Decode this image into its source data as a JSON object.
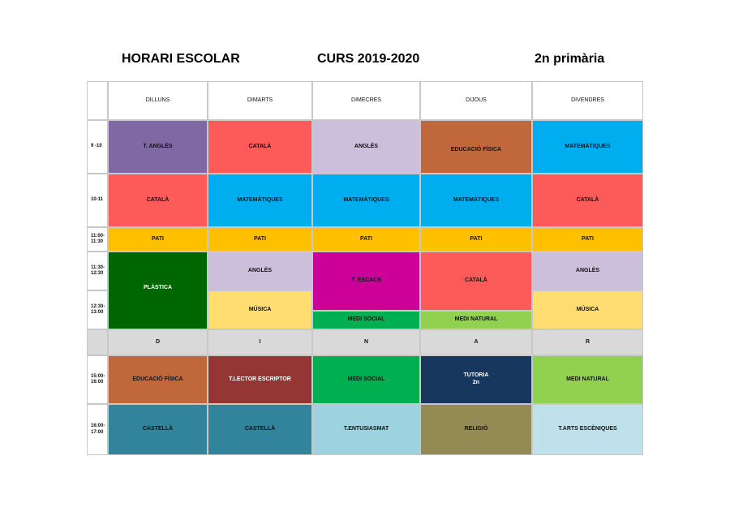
{
  "header": {
    "left": "HORARI ESCOLAR",
    "center": "CURS 2019-2020",
    "right": "2n primària"
  },
  "days": [
    "DILLUNS",
    "DIMARTS",
    "DIMECRES",
    "DIJOUS",
    "DIVENDRES"
  ],
  "times": {
    "t1": "9 -10",
    "t2": "10-11",
    "t3": "11:00-\n11:30",
    "t4": "11:30-\n12:30",
    "t5": "12:30-\n13:00",
    "t6": "15:00-\n16:00",
    "t7": "16:00-\n17:00"
  },
  "lunch": [
    "D",
    "I",
    "N",
    "A",
    "R"
  ],
  "cells": {
    "mon_1": "T. ANGLÈS",
    "tue_1": "CATALÀ",
    "wed_1": "ANGLÈS",
    "thu_1": "EDUCACIÓ FÍSICA",
    "fri_1": "MATEMÀTIQUES",
    "mon_2": "CATALÀ",
    "tue_2": "MATEMÀTIQUES",
    "wed_2": "MATEMÀTIQUES",
    "thu_2": "MATEMÀTIQUES",
    "fri_2": "CATALÀ",
    "pati": "PATI",
    "mon_4": "PLÀSTICA",
    "tue_4": "ANGLÈS",
    "wed_4": "T. ESCACS",
    "thu_4": "CATALÀ",
    "fri_4": "ANGLÈS",
    "tue_5": "MÚSICA",
    "wed_5": "MEDI SOCIAL",
    "thu_5": "MEDI NATURAL",
    "fri_5": "MÚSICA",
    "mon_6": "EDUCACIÓ FÍSICA",
    "tue_6": "T.LECTOR ESCRIPTOR",
    "wed_6": "MEDI SOCIAL",
    "thu_6_line1": "TUTORIA",
    "thu_6_line2": "2n",
    "fri_6": "MEDI NATURAL",
    "mon_7": "CASTELLÀ",
    "tue_7": "CASTELLÀ",
    "wed_7": "T.ENTUSIASMAT",
    "thu_7": "RELIGIÓ",
    "fri_7": "T.ARTS ESCÈNIQUES"
  },
  "colors": {
    "purple": "#8068a4",
    "red": "#fd5a5a",
    "lavender": "#cbbfdb",
    "brown_orange": "#c0683c",
    "cyan": "#00aeef",
    "yellow_orange": "#ffc000",
    "dark_green": "#006600",
    "magenta": "#cc0099",
    "light_yellow": "#ffdd70",
    "green": "#00b050",
    "light_green": "#92d050",
    "gray": "#d9d9d9",
    "dark_red": "#943634",
    "navy": "#17375e",
    "teal": "#31849b",
    "light_blue": "#9dd3e0",
    "olive": "#948a54"
  }
}
